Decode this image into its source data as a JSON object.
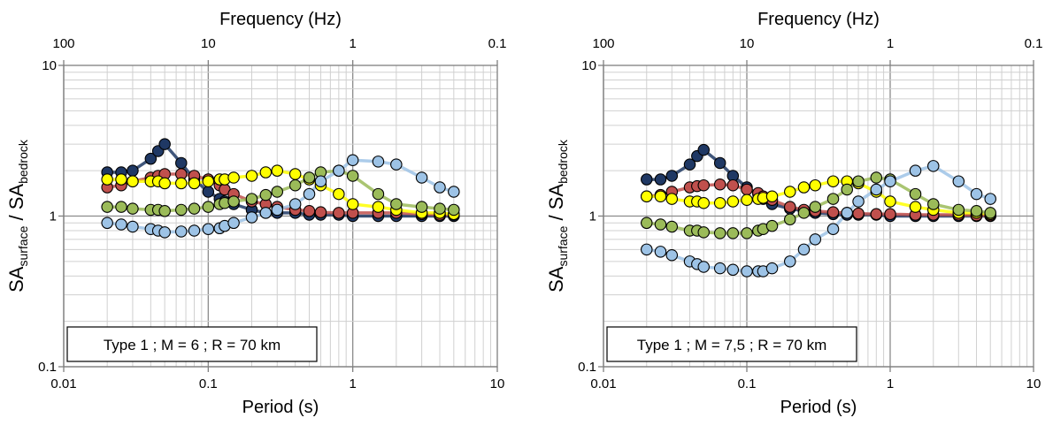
{
  "chart_data": [
    {
      "type": "scatter",
      "x_scale": "log",
      "y_scale": "log",
      "xlim": [
        0.01,
        10
      ],
      "ylim": [
        0.1,
        10
      ],
      "top_xlim": [
        100,
        0.1
      ],
      "grid": true,
      "xlabel": "Period (s)",
      "top_xlabel": "Frequency (Hz)",
      "ylabel_main": "SA",
      "ylabel_sub1": "surface",
      "ylabel_sep": " / SA",
      "ylabel_sub2": "bedrock",
      "xticks": [
        "0.01",
        "0.1",
        "1",
        "10"
      ],
      "top_xticks": [
        "100",
        "10",
        "1",
        "0.1"
      ],
      "yticks": [
        "0.1",
        "1",
        "10"
      ],
      "annotation": "Type 1 ; M = 6 ; R = 70 km",
      "x": [
        0.02,
        0.025,
        0.03,
        0.04,
        0.045,
        0.05,
        0.065,
        0.08,
        0.1,
        0.12,
        0.13,
        0.15,
        0.2,
        0.25,
        0.3,
        0.4,
        0.5,
        0.6,
        0.8,
        1.0,
        1.5,
        2.0,
        3.0,
        4.0,
        5.0
      ],
      "series": [
        {
          "color": "#1f3864",
          "values": [
            1.95,
            1.95,
            2.0,
            2.4,
            2.7,
            3.0,
            2.25,
            1.75,
            1.45,
            1.3,
            1.25,
            1.2,
            1.1,
            1.05,
            1.05,
            1.05,
            1.02,
            1.02,
            1.02,
            1.0,
            1.0,
            1.0,
            1.0,
            1.0,
            1.0
          ]
        },
        {
          "color": "#c0504d",
          "values": [
            1.55,
            1.6,
            1.7,
            1.8,
            1.85,
            1.9,
            1.9,
            1.85,
            1.75,
            1.6,
            1.5,
            1.4,
            1.25,
            1.2,
            1.15,
            1.1,
            1.08,
            1.06,
            1.05,
            1.05,
            1.05,
            1.05,
            1.03,
            1.02,
            1.02
          ]
        },
        {
          "color": "#ffff00",
          "values": [
            1.75,
            1.75,
            1.7,
            1.7,
            1.7,
            1.65,
            1.65,
            1.65,
            1.7,
            1.75,
            1.75,
            1.8,
            1.85,
            1.95,
            2.0,
            1.9,
            1.75,
            1.6,
            1.4,
            1.2,
            1.15,
            1.1,
            1.05,
            1.05,
            1.03
          ]
        },
        {
          "color": "#9bbb59",
          "values": [
            1.15,
            1.15,
            1.12,
            1.1,
            1.1,
            1.08,
            1.1,
            1.12,
            1.15,
            1.2,
            1.22,
            1.25,
            1.3,
            1.38,
            1.45,
            1.6,
            1.8,
            1.95,
            2.0,
            1.85,
            1.4,
            1.2,
            1.15,
            1.12,
            1.1
          ]
        },
        {
          "color": "#9dc3e6",
          "values": [
            0.9,
            0.88,
            0.85,
            0.82,
            0.8,
            0.78,
            0.79,
            0.8,
            0.82,
            0.83,
            0.86,
            0.9,
            0.98,
            1.05,
            1.1,
            1.2,
            1.4,
            1.7,
            2.0,
            2.35,
            2.3,
            2.2,
            1.8,
            1.55,
            1.45
          ]
        }
      ]
    },
    {
      "type": "scatter",
      "x_scale": "log",
      "y_scale": "log",
      "xlim": [
        0.01,
        10
      ],
      "ylim": [
        0.1,
        10
      ],
      "top_xlim": [
        100,
        0.1
      ],
      "grid": true,
      "xlabel": "Period (s)",
      "top_xlabel": "Frequency (Hz)",
      "ylabel_main": "SA",
      "ylabel_sub1": "surface",
      "ylabel_sep": " / SA",
      "ylabel_sub2": "bedrock",
      "xticks": [
        "0.01",
        "0.1",
        "1",
        "10"
      ],
      "top_xticks": [
        "100",
        "10",
        "1",
        "0.1"
      ],
      "yticks": [
        "0.1",
        "1",
        "10"
      ],
      "annotation": "Type 1 ; M = 7,5 ; R = 70 km",
      "x": [
        0.02,
        0.025,
        0.03,
        0.04,
        0.045,
        0.05,
        0.065,
        0.08,
        0.1,
        0.12,
        0.13,
        0.15,
        0.2,
        0.25,
        0.3,
        0.4,
        0.5,
        0.6,
        0.8,
        1.0,
        1.5,
        2.0,
        3.0,
        4.0,
        5.0
      ],
      "series": [
        {
          "color": "#1f3864",
          "values": [
            1.75,
            1.75,
            1.85,
            2.2,
            2.5,
            2.75,
            2.25,
            1.85,
            1.55,
            1.4,
            1.3,
            1.2,
            1.12,
            1.08,
            1.05,
            1.03,
            1.02,
            1.02,
            1.02,
            1.0,
            1.0,
            1.0,
            1.0,
            1.0,
            1.0
          ]
        },
        {
          "color": "#c0504d",
          "values": [
            1.35,
            1.38,
            1.45,
            1.55,
            1.58,
            1.6,
            1.62,
            1.6,
            1.5,
            1.42,
            1.35,
            1.28,
            1.15,
            1.1,
            1.08,
            1.06,
            1.05,
            1.04,
            1.03,
            1.03,
            1.02,
            1.02,
            1.02,
            1.01,
            1.01
          ]
        },
        {
          "color": "#ffff00",
          "values": [
            1.35,
            1.35,
            1.3,
            1.25,
            1.25,
            1.22,
            1.22,
            1.25,
            1.28,
            1.3,
            1.32,
            1.35,
            1.45,
            1.55,
            1.6,
            1.7,
            1.7,
            1.65,
            1.45,
            1.25,
            1.15,
            1.1,
            1.05,
            1.05,
            1.03
          ]
        },
        {
          "color": "#9bbb59",
          "values": [
            0.9,
            0.88,
            0.85,
            0.8,
            0.8,
            0.78,
            0.77,
            0.77,
            0.77,
            0.8,
            0.82,
            0.86,
            0.95,
            1.05,
            1.15,
            1.3,
            1.5,
            1.7,
            1.8,
            1.75,
            1.4,
            1.2,
            1.1,
            1.08,
            1.05
          ]
        },
        {
          "color": "#9dc3e6",
          "values": [
            0.6,
            0.58,
            0.55,
            0.5,
            0.48,
            0.46,
            0.45,
            0.44,
            0.43,
            0.43,
            0.43,
            0.45,
            0.5,
            0.6,
            0.7,
            0.82,
            1.05,
            1.25,
            1.5,
            1.7,
            2.0,
            2.15,
            1.7,
            1.4,
            1.3
          ]
        }
      ]
    }
  ]
}
